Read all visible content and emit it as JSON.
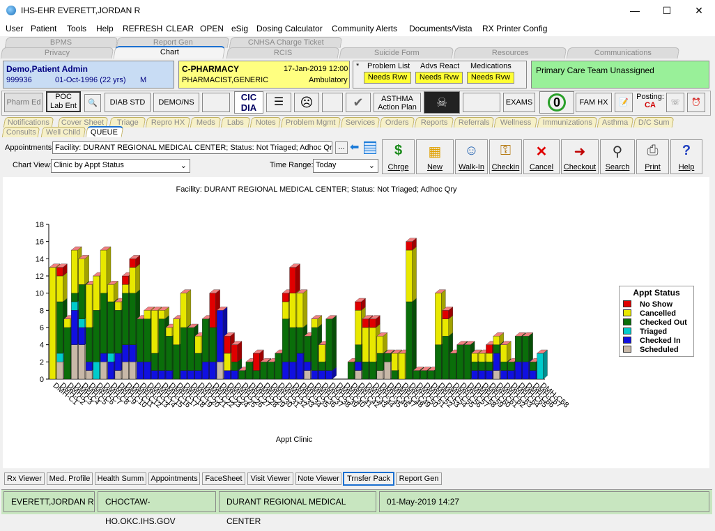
{
  "window": {
    "title": "IHS-EHR EVERETT,JORDAN R",
    "min": "—",
    "max": "☐",
    "close": "✕"
  },
  "menu": [
    "User",
    "Patient",
    "Tools",
    "Help",
    "REFRESH",
    "CLEAR",
    "OPEN",
    "eSig",
    "Dosing Calculator",
    "Community Alerts",
    "Documents/Vista",
    "RX Printer Config"
  ],
  "tabs_row1": [
    "BPMS",
    "Report Gen",
    "CNHSA Charge Ticket"
  ],
  "tabs_row2": [
    "Privacy",
    "Chart",
    "RCIS",
    "Suicide Form",
    "Resources",
    "Communications"
  ],
  "patient": {
    "name": "Demo,Patient Admin",
    "id": "999936",
    "dob": "01-Oct-1996 (22 yrs)",
    "sex": "M"
  },
  "provider": {
    "location": "C-PHARMACY",
    "date": "17-Jan-2019 12:00",
    "name": "PHARMACIST,GENERIC",
    "type": "Ambulatory"
  },
  "alerts": {
    "marker": "*",
    "problem": "Problem List",
    "advs": "Advs React",
    "meds": "Medications",
    "needs": "Needs Rvw"
  },
  "care_team": "Primary Care Team Unassigned",
  "toolbar": {
    "pharm_ed": "Pharm Ed",
    "poc1": "POC",
    "poc2": "Lab Ent",
    "diab": "DIAB STD",
    "demo": "DEMO/NS",
    "cic1": "CIC",
    "cic2": "DIA",
    "asthma1": "ASTHMA",
    "asthma2": "Action Plan",
    "exams": "EXAMS",
    "count": "0",
    "famhx": "FAM HX",
    "posting": "Posting:",
    "posting_val": "CA"
  },
  "subtabs_row1": [
    "Notifications",
    "Cover Sheet",
    "Triage",
    "Repro HX",
    "Meds",
    "Labs",
    "Notes",
    "Problem Mgmt",
    "Services",
    "Orders",
    "Reports",
    "Referrals",
    "Wellness",
    "Immunizations",
    "Asthma",
    "D/C Sum"
  ],
  "subtabs_row2": [
    "Consults",
    "Well Child",
    "QUEUE"
  ],
  "appointments": {
    "label": "Appointments:",
    "value": "Facility: DURANT REGIONAL MEDICAL CENTER; Status: Not Triaged; Adhoc Qry",
    "dots": "..."
  },
  "chartview": {
    "label": "Chart View:",
    "value": "Clinic by Appt Status"
  },
  "timerange": {
    "label": "Time Range:",
    "value": "Today"
  },
  "tools": [
    "Chrge",
    "New",
    "Walk-In",
    "Checkin",
    "Cancel",
    "Checkout",
    "Search",
    "Print",
    "Help"
  ],
  "bottom_tabs": [
    "Rx Viewer",
    "Med. Profile",
    "Health Summ",
    "Appointments",
    "FaceSheet",
    "Visit Viewer",
    "Note Viewer",
    "Trnsfer Pack",
    "Report Gen"
  ],
  "statusbar": [
    "EVERETT,JORDAN R",
    "CHOCTAW-HO.OKC.IHS.GOV",
    "DURANT REGIONAL MEDICAL CENTER",
    "01-May-2019 14:27"
  ],
  "colors": {
    "no_show": "#e00000",
    "cancelled": "#e8e800",
    "checked_out": "#0a6e0a",
    "triaged": "#00cccc",
    "checked_in": "#1010e0",
    "scheduled": "#c8b8a8"
  },
  "chart_data": {
    "type": "bar",
    "stacked": true,
    "title": "Facility: DURANT REGIONAL MEDICAL CENTER; Status: Not Triaged; Adhoc Qry",
    "xlabel": "Appt Clinic",
    "ylabel": "",
    "ylim": [
      0,
      18
    ],
    "yticks": [
      0,
      2,
      4,
      6,
      8,
      10,
      12,
      14,
      16,
      18
    ],
    "legend_title": "Appt Status",
    "legend_position": "right",
    "categories": [
      "DMH-C1",
      "DMH-C2",
      "DMH-C3",
      "DMH-C4",
      "DMH-C5",
      "DMH-C6",
      "DMH-C7",
      "DMH-C8",
      "DMH-C9",
      "DMH-C10",
      "DMH-C11",
      "DMH-C12",
      "DMH-C13",
      "DMH-C14",
      "DMH-C15",
      "DMH-C16",
      "DMH-C17",
      "DMH-C18",
      "DMH-C19",
      "DMH-C20",
      "DMH-C21",
      "DMH-C22",
      "DMH-C23",
      "DMH-C24",
      "DMH-C25",
      "DMH-C26",
      "DMH-C27",
      "DMH-C28",
      "DMH-C29",
      "DMH-C30",
      "DMH-C31",
      "DMH-C32",
      "DMH-C33",
      "DMH-C34",
      "DMH-C35",
      "DMH-C36",
      "DMH-C37",
      "DMH-C38",
      "DMH-C39",
      "DMH-C40",
      "DMH-C41",
      "DMH-C42",
      "DMH-C43",
      "DMH-C44",
      "DMH-C45",
      "DMH-C46",
      "DMH-C47",
      "DMH-C48",
      "DMH-C49",
      "DMH-C50",
      "DMH-C51",
      "DMH-C52",
      "DMH-C53",
      "DMH-C54",
      "DMH-C55",
      "DMH-C56",
      "DMH-C57",
      "DMH-C58",
      "DMH-C59",
      "DMH-C60",
      "DMH-C61",
      "DMH-C62",
      "DMH-C63",
      "DMH-C64",
      "DMH-C65",
      "DMH-C66",
      "DMH-C67",
      "DMH-C68"
    ],
    "series": [
      {
        "name": "Scheduled",
        "key": "scheduled",
        "values": [
          0,
          2,
          0,
          4,
          4,
          1,
          0,
          2,
          0,
          1,
          2,
          2,
          0,
          0,
          0,
          0,
          0,
          0,
          0,
          0,
          0,
          0,
          0,
          2,
          0,
          0,
          0,
          0,
          0,
          0,
          0,
          0,
          0,
          0,
          0,
          1,
          0,
          0,
          0,
          0,
          0,
          0,
          1,
          0,
          0,
          1,
          2,
          0,
          0,
          0,
          0,
          0,
          0,
          0,
          0,
          0,
          0,
          0,
          0,
          0,
          0,
          1,
          0,
          0,
          0,
          0,
          0,
          0
        ]
      },
      {
        "name": "Checked In",
        "key": "checked_in",
        "values": [
          0,
          0,
          0,
          4,
          2,
          1,
          0,
          1,
          2,
          2,
          2,
          2,
          2,
          2,
          1,
          1,
          1,
          0,
          1,
          1,
          1,
          2,
          2,
          6,
          1,
          1,
          0,
          0,
          0,
          0,
          0,
          0,
          2,
          2,
          3,
          1,
          1,
          1,
          1,
          0,
          0,
          0,
          1,
          0,
          0,
          0,
          0,
          0,
          0,
          0,
          0,
          0,
          0,
          0,
          0,
          0,
          0,
          0,
          1,
          1,
          1,
          2,
          1,
          1,
          2,
          2,
          1,
          0
        ]
      },
      {
        "name": "Triaged",
        "key": "triaged",
        "values": [
          0,
          1,
          0,
          1,
          1,
          0,
          2,
          0,
          1,
          0,
          0,
          0,
          0,
          0,
          0,
          0,
          0,
          0,
          0,
          0,
          0,
          0,
          0,
          0,
          0,
          0,
          0,
          0,
          0,
          0,
          0,
          0,
          0,
          0,
          0,
          0,
          0,
          0,
          0,
          0,
          0,
          0,
          0,
          0,
          0,
          0,
          0,
          0,
          0,
          0,
          0,
          0,
          0,
          0,
          0,
          0,
          0,
          0,
          0,
          0,
          0,
          0,
          0,
          0,
          0,
          0,
          0,
          3
        ]
      },
      {
        "name": "Checked Out",
        "key": "checked_out",
        "values": [
          0,
          6,
          6,
          1,
          4,
          4,
          6,
          7,
          6,
          5,
          6,
          6,
          5,
          5,
          2,
          6,
          4,
          4,
          5,
          5,
          2,
          5,
          4,
          0,
          0,
          1,
          1,
          2,
          1,
          2,
          2,
          3,
          5,
          4,
          3,
          3,
          5,
          1,
          6,
          0,
          0,
          2,
          2,
          2,
          2,
          2,
          1,
          1,
          0,
          9,
          1,
          1,
          1,
          4,
          5,
          3,
          4,
          4,
          1,
          1,
          1,
          1,
          1,
          1,
          3,
          3,
          1,
          0
        ]
      },
      {
        "name": "Cancelled",
        "key": "cancelled",
        "values": [
          13,
          3,
          1,
          5,
          3,
          5,
          4,
          5,
          2,
          1,
          1,
          3,
          0,
          1,
          5,
          1,
          1,
          3,
          4,
          0,
          2,
          0,
          0,
          0,
          2,
          0,
          0,
          0,
          0,
          0,
          0,
          0,
          2,
          4,
          4,
          0,
          1,
          2,
          0,
          0,
          0,
          0,
          4,
          4,
          4,
          2,
          0,
          2,
          3,
          6,
          0,
          0,
          0,
          6,
          2,
          0,
          0,
          0,
          1,
          1,
          1,
          1,
          2,
          0,
          0,
          0,
          0,
          0
        ]
      },
      {
        "name": "No Show",
        "key": "no_show",
        "values": [
          0,
          1,
          0,
          0,
          0,
          0,
          0,
          0,
          0,
          0,
          1,
          1,
          0,
          0,
          0,
          0,
          0,
          0,
          0,
          0,
          0,
          0,
          4,
          0,
          2,
          2,
          0,
          0,
          2,
          0,
          0,
          0,
          1,
          3,
          0,
          0,
          0,
          0,
          0,
          0,
          0,
          0,
          1,
          1,
          1,
          0,
          0,
          0,
          0,
          1,
          0,
          0,
          0,
          0,
          1,
          0,
          0,
          0,
          0,
          0,
          1,
          0,
          0,
          0,
          0,
          0,
          0,
          0
        ]
      }
    ]
  }
}
